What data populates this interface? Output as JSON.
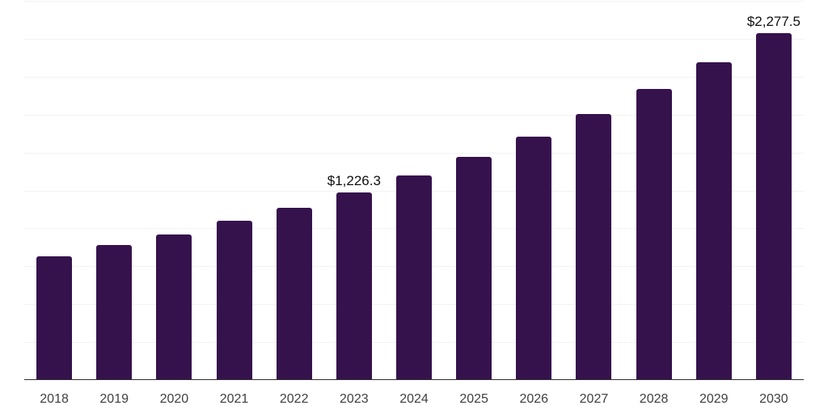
{
  "chart_data": {
    "type": "bar",
    "title": "",
    "xlabel": "",
    "ylabel": "",
    "categories": [
      "2018",
      "2019",
      "2020",
      "2021",
      "2022",
      "2023",
      "2024",
      "2025",
      "2026",
      "2027",
      "2028",
      "2029",
      "2030"
    ],
    "values": [
      810,
      880,
      953,
      1040,
      1127,
      1226.3,
      1339.8,
      1463.7,
      1599.1,
      1747.1,
      1908.7,
      2085.3,
      2277.5
    ],
    "data_labels": {
      "2023": "$1,226.3",
      "2030": "$2,277.5"
    },
    "ylim": [
      0,
      2500
    ],
    "grid_step": 250,
    "grid": true,
    "legend": false,
    "y_axis_labels_visible": false,
    "colors": {
      "bar": "#36124d",
      "axis_line": "#2e2e2e",
      "gridline": "#f2f2f2",
      "tick_label": "#404040",
      "data_label": "#101010",
      "background": "#ffffff"
    }
  }
}
